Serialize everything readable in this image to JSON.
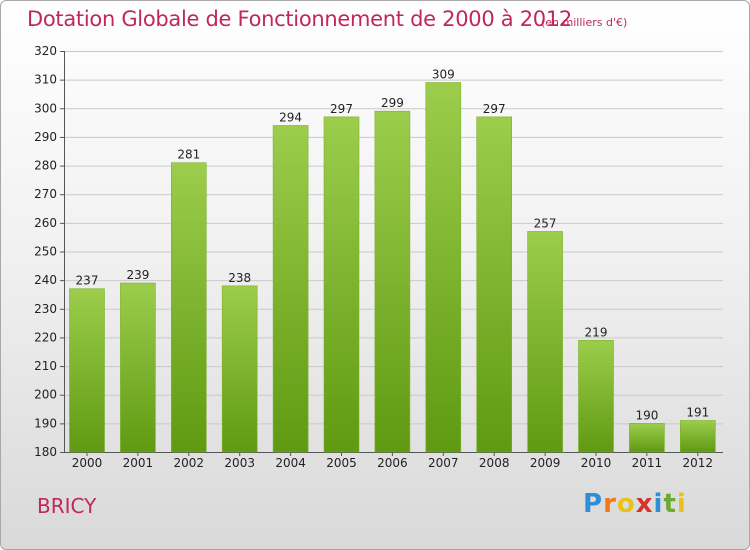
{
  "title": "Dotation Globale de Fonctionnement de 2000 à 2012",
  "subtitle": "(en milliers d'€)",
  "commune": "BRICY",
  "logo": {
    "letters": [
      "P",
      "r",
      "o",
      "x",
      "i",
      "t",
      "i"
    ],
    "colors": [
      "#2e8fd4",
      "#f07a1a",
      "#e8c21a",
      "#d8332a",
      "#2e8fd4",
      "#6aaa2e",
      "#e8c21a"
    ]
  },
  "colors": {
    "bar_top": "#9ccd4c",
    "bar_bottom": "#5f9a12",
    "title": "#c0285a"
  },
  "chart_data": {
    "type": "bar",
    "categories": [
      "2000",
      "2001",
      "2002",
      "2003",
      "2004",
      "2005",
      "2006",
      "2007",
      "2008",
      "2009",
      "2010",
      "2011",
      "2012"
    ],
    "values": [
      237,
      239,
      281,
      238,
      294,
      297,
      299,
      309,
      297,
      257,
      219,
      190,
      191
    ],
    "ylim": [
      180,
      320
    ],
    "yticks": [
      180,
      190,
      200,
      210,
      220,
      230,
      240,
      250,
      260,
      270,
      280,
      290,
      300,
      310,
      320
    ],
    "grid": true,
    "data_labels": true
  }
}
